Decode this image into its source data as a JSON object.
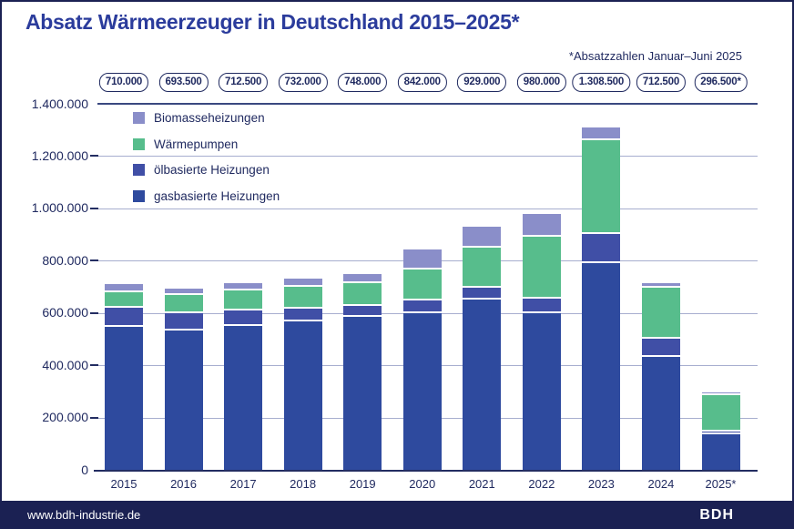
{
  "title": "Absatz Wärmeerzeuger in Deutschland 2015–2025*",
  "footnote": "*Absatzzahlen Januar–Juni 2025",
  "footer": {
    "website": "www.bdh-industrie.de",
    "logo_text": "BDH"
  },
  "colors": {
    "accent_blue": "#2b3c9c",
    "navy_text": "#202a60",
    "frame_navy": "#1b2153",
    "grid_light": "#a7aecf",
    "grid_dark": "#3a4880",
    "axis_dark": "#232d62",
    "gas": "#2e4a9e",
    "oil": "#404fa6",
    "heat_pump": "#57bd8c",
    "biomass": "#8a8ec9"
  },
  "chart_data": {
    "type": "bar",
    "stacked": true,
    "title": "Absatz Wärmeerzeuger in Deutschland 2015–2025*",
    "categories": [
      "2015",
      "2016",
      "2017",
      "2018",
      "2019",
      "2020",
      "2021",
      "2022",
      "2023",
      "2024",
      "2025*"
    ],
    "total_labels": [
      "710.000",
      "693.500",
      "712.500",
      "732.000",
      "748.000",
      "842.000",
      "929.000",
      "980.000",
      "1.308.500",
      "712.500",
      "296.500*"
    ],
    "totals": [
      710000,
      693500,
      712500,
      732000,
      748000,
      842000,
      929000,
      980000,
      1308500,
      712500,
      296500
    ],
    "series": [
      {
        "name": "gasbasierte Heizungen",
        "color_key": "gas",
        "values": [
          548000,
          532500,
          550000,
          567500,
          586000,
          600500,
          650500,
          598000,
          790500,
          432500,
          136500
        ]
      },
      {
        "name": "ölbasierte Heizungen",
        "color_key": "oil",
        "values": [
          73000,
          68000,
          58000,
          48500,
          41500,
          45500,
          44500,
          57500,
          112500,
          69500,
          11000
        ]
      },
      {
        "name": "Wärmepumpen",
        "color_key": "heat_pump",
        "values": [
          57000,
          66500,
          78000,
          84000,
          86000,
          120000,
          154000,
          236000,
          356000,
          193000,
          139500
        ]
      },
      {
        "name": "Biomasseheizungen",
        "color_key": "biomass",
        "values": [
          32000,
          26500,
          26500,
          32000,
          34500,
          76000,
          80000,
          88500,
          49500,
          17500,
          9500
        ]
      }
    ],
    "legend": [
      {
        "label": "Biomasseheizungen",
        "color_key": "biomass"
      },
      {
        "label": "Wärmepumpen",
        "color_key": "heat_pump"
      },
      {
        "label": "ölbasierte Heizungen",
        "color_key": "oil"
      },
      {
        "label": "gasbasierte Heizungen",
        "color_key": "gas"
      }
    ],
    "ylim": [
      0,
      1400000
    ],
    "ytick_step": 200000,
    "ytick_labels": [
      "0",
      "200.000",
      "400.000",
      "600.000",
      "800.000",
      "1.000.000",
      "1.200.000",
      "1.400.000"
    ],
    "grid": true,
    "legend_position": "inside-top-left",
    "note": "*Absatzzahlen Januar–Juni 2025"
  }
}
